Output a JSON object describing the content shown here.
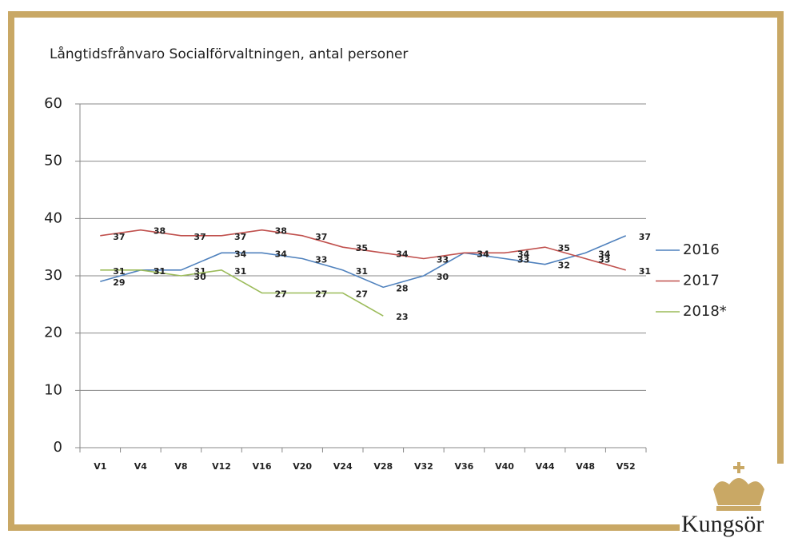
{
  "chart_data": {
    "type": "line",
    "title": "Långtidsfrånvaro Socialförvaltningen, antal personer",
    "categories": [
      "V1",
      "V4",
      "V8",
      "V12",
      "V16",
      "V20",
      "V24",
      "V28",
      "V32",
      "V36",
      "V40",
      "V44",
      "V48",
      "V52"
    ],
    "series": [
      {
        "name": "2016",
        "color": "#4f81bd",
        "values": [
          29,
          31,
          31,
          34,
          34,
          33,
          31,
          28,
          30,
          34,
          33,
          32,
          34,
          37
        ]
      },
      {
        "name": "2017",
        "color": "#c0504d",
        "values": [
          37,
          38,
          37,
          37,
          38,
          37,
          35,
          34,
          33,
          34,
          34,
          35,
          33,
          31
        ]
      },
      {
        "name": "2018*",
        "color": "#9bbb59",
        "values": [
          31,
          31,
          30,
          31,
          27,
          27,
          27,
          23,
          null,
          null,
          null,
          null,
          null,
          null
        ]
      }
    ],
    "ylim": [
      0,
      60
    ],
    "yticks": [
      0,
      10,
      20,
      30,
      40,
      50,
      60
    ],
    "grid": true,
    "legend": "right",
    "logo_text": "Kungsör"
  }
}
